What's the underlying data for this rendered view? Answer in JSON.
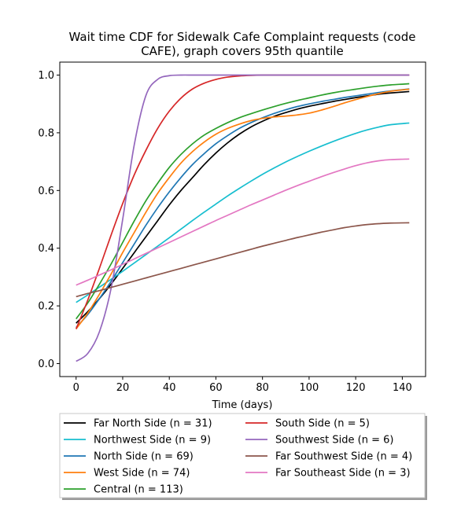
{
  "chart_data": {
    "type": "line",
    "title_line1": "Wait time CDF for Sidewalk Cafe Complaint  requests (code",
    "title_line2": "CAFE), graph covers 95th quantile",
    "xlabel": "Time (days)",
    "ylabel": "",
    "xlim": [
      -7,
      150
    ],
    "ylim": [
      -0.045,
      1.045
    ],
    "xticks": [
      0,
      20,
      40,
      60,
      80,
      100,
      120,
      140
    ],
    "yticks": [
      0.0,
      0.2,
      0.4,
      0.6,
      0.8,
      1.0
    ],
    "xtick_labels": [
      "0",
      "20",
      "40",
      "60",
      "80",
      "100",
      "120",
      "140"
    ],
    "ytick_labels": [
      "0.0",
      "0.2",
      "0.4",
      "0.6",
      "0.8",
      "1.0"
    ],
    "grid": false,
    "legend_placement": "below plot, two columns",
    "x": [
      0,
      5,
      10,
      15,
      20,
      25,
      30,
      35,
      40,
      45,
      50,
      55,
      60,
      65,
      70,
      75,
      80,
      85,
      90,
      95,
      100,
      105,
      110,
      115,
      120,
      125,
      130,
      135,
      143
    ],
    "series": [
      {
        "name": "Far North Side (n = 31)",
        "color": "#000000",
        "values": [
          0.14,
          0.18,
          0.225,
          0.275,
          0.33,
          0.385,
          0.44,
          0.495,
          0.55,
          0.6,
          0.645,
          0.69,
          0.73,
          0.765,
          0.795,
          0.82,
          0.84,
          0.857,
          0.87,
          0.882,
          0.892,
          0.9,
          0.908,
          0.915,
          0.922,
          0.928,
          0.934,
          0.938,
          0.943
        ]
      },
      {
        "name": "Northwest Side (n = 9)",
        "color": "#17becf",
        "values": [
          0.212,
          0.238,
          0.265,
          0.292,
          0.32,
          0.349,
          0.378,
          0.407,
          0.436,
          0.466,
          0.496,
          0.525,
          0.553,
          0.581,
          0.607,
          0.632,
          0.656,
          0.678,
          0.699,
          0.718,
          0.736,
          0.753,
          0.769,
          0.784,
          0.798,
          0.81,
          0.82,
          0.828,
          0.834
        ]
      },
      {
        "name": "North Side (n = 69)",
        "color": "#1f77b4",
        "values": [
          0.125,
          0.17,
          0.225,
          0.285,
          0.35,
          0.415,
          0.48,
          0.54,
          0.595,
          0.645,
          0.69,
          0.728,
          0.762,
          0.79,
          0.815,
          0.835,
          0.852,
          0.867,
          0.88,
          0.891,
          0.9,
          0.908,
          0.915,
          0.922,
          0.928,
          0.934,
          0.94,
          0.945,
          0.952
        ]
      },
      {
        "name": "West Side (n = 74)",
        "color": "#ff7f0e",
        "values": [
          0.12,
          0.175,
          0.24,
          0.31,
          0.385,
          0.455,
          0.525,
          0.59,
          0.645,
          0.695,
          0.735,
          0.768,
          0.795,
          0.815,
          0.83,
          0.842,
          0.85,
          0.855,
          0.858,
          0.862,
          0.868,
          0.878,
          0.89,
          0.903,
          0.915,
          0.926,
          0.936,
          0.944,
          0.951
        ]
      },
      {
        "name": "Central (n = 113)",
        "color": "#2ca02c",
        "values": [
          0.155,
          0.21,
          0.275,
          0.345,
          0.42,
          0.495,
          0.565,
          0.625,
          0.68,
          0.725,
          0.762,
          0.792,
          0.815,
          0.835,
          0.852,
          0.866,
          0.879,
          0.891,
          0.902,
          0.912,
          0.921,
          0.93,
          0.938,
          0.945,
          0.951,
          0.957,
          0.962,
          0.966,
          0.97
        ]
      },
      {
        "name": "South Side (n = 5)",
        "color": "#d62728",
        "values": [
          0.12,
          0.22,
          0.33,
          0.445,
          0.555,
          0.655,
          0.74,
          0.815,
          0.875,
          0.92,
          0.952,
          0.972,
          0.985,
          0.993,
          0.997,
          0.999,
          1.0,
          1.0,
          1.0,
          1.0,
          1.0,
          1.0,
          1.0,
          1.0,
          1.0,
          1.0,
          1.0,
          1.0,
          1.0
        ]
      },
      {
        "name": "Southwest Side (n = 6)",
        "color": "#9467bd",
        "values": [
          0.008,
          0.035,
          0.11,
          0.26,
          0.5,
          0.76,
          0.93,
          0.985,
          0.998,
          1.0,
          1.0,
          1.0,
          1.0,
          1.0,
          1.0,
          1.0,
          1.0,
          1.0,
          1.0,
          1.0,
          1.0,
          1.0,
          1.0,
          1.0,
          1.0,
          1.0,
          1.0,
          1.0,
          1.0
        ]
      },
      {
        "name": "Far Southwest Side (n = 4)",
        "color": "#8c564b",
        "values": [
          0.232,
          0.243,
          0.253,
          0.264,
          0.275,
          0.286,
          0.297,
          0.308,
          0.319,
          0.33,
          0.341,
          0.352,
          0.363,
          0.374,
          0.385,
          0.396,
          0.407,
          0.417,
          0.427,
          0.437,
          0.446,
          0.455,
          0.463,
          0.471,
          0.477,
          0.482,
          0.485,
          0.487,
          0.488
        ]
      },
      {
        "name": "Far Southeast Side (n = 3)",
        "color": "#e377c2",
        "values": [
          0.272,
          0.289,
          0.307,
          0.325,
          0.344,
          0.363,
          0.382,
          0.401,
          0.42,
          0.439,
          0.458,
          0.477,
          0.496,
          0.514,
          0.532,
          0.55,
          0.567,
          0.584,
          0.601,
          0.617,
          0.632,
          0.647,
          0.661,
          0.674,
          0.686,
          0.696,
          0.703,
          0.707,
          0.709
        ]
      }
    ],
    "legend_order": [
      0,
      5,
      1,
      6,
      2,
      7,
      3,
      8,
      4
    ]
  }
}
